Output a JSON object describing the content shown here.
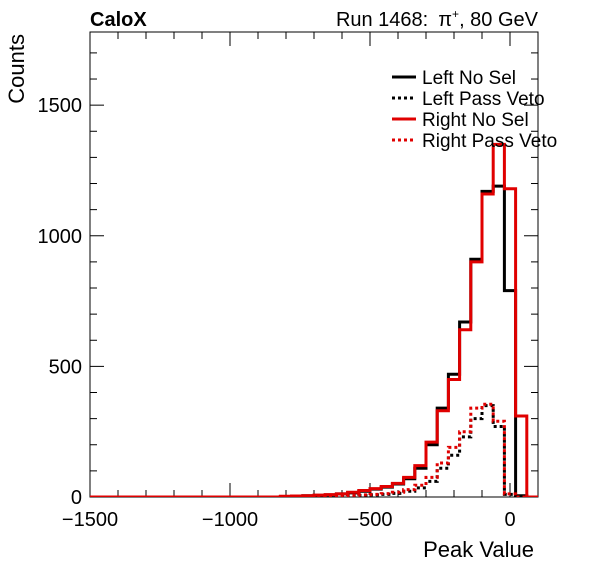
{
  "header": {
    "left_label": "CaloX",
    "run_label": "Run 1468:",
    "particle": "π",
    "particle_sup": "+",
    "energy_label": ", 80 GeV"
  },
  "chart_data": {
    "type": "step-histogram",
    "xlabel": "Peak Value",
    "ylabel": "Counts",
    "xlim": [
      -1500,
      100
    ],
    "ylim": [
      0,
      1780
    ],
    "x_ticks": [
      -1500,
      -1000,
      -500,
      0
    ],
    "x_tick_labels": [
      "−1500",
      "−1000",
      "−500",
      "0"
    ],
    "y_ticks": [
      0,
      500,
      1000,
      1500
    ],
    "y_tick_labels": [
      "0",
      "500",
      "1000",
      "1500"
    ],
    "legend_position": "top-right",
    "bin_edges": [
      -1500,
      -1460,
      -1420,
      -1380,
      -1340,
      -1300,
      -1260,
      -1220,
      -1180,
      -1140,
      -1100,
      -1060,
      -1020,
      -980,
      -940,
      -900,
      -860,
      -820,
      -780,
      -740,
      -700,
      -660,
      -620,
      -580,
      -540,
      -500,
      -460,
      -420,
      -380,
      -340,
      -300,
      -260,
      -220,
      -180,
      -140,
      -100,
      -60,
      -20,
      20,
      60,
      100
    ],
    "series": [
      {
        "name": "Left No Sel",
        "color": "#000000",
        "style": "solid",
        "values": [
          0,
          0,
          0,
          0,
          0,
          0,
          0,
          0,
          0,
          0,
          0,
          0,
          0,
          0,
          0,
          0,
          0,
          2,
          3,
          5,
          6,
          8,
          12,
          16,
          22,
          30,
          38,
          50,
          70,
          110,
          200,
          340,
          470,
          670,
          910,
          1170,
          1190,
          790,
          5,
          0
        ]
      },
      {
        "name": "Left Pass Veto",
        "color": "#000000",
        "style": "dotted",
        "values": [
          0,
          0,
          0,
          0,
          0,
          0,
          0,
          0,
          0,
          0,
          0,
          0,
          0,
          0,
          0,
          0,
          0,
          0,
          1,
          1,
          2,
          3,
          4,
          5,
          6,
          8,
          10,
          14,
          22,
          35,
          60,
          110,
          160,
          230,
          300,
          350,
          270,
          10,
          0,
          0
        ]
      },
      {
        "name": "Right No Sel",
        "color": "#e00000",
        "style": "solid",
        "values": [
          0,
          0,
          0,
          0,
          0,
          0,
          0,
          0,
          0,
          0,
          0,
          0,
          0,
          0,
          0,
          0,
          0,
          3,
          4,
          5,
          7,
          9,
          12,
          18,
          25,
          32,
          40,
          52,
          75,
          120,
          210,
          330,
          450,
          640,
          900,
          1160,
          1350,
          1180,
          310,
          0
        ]
      },
      {
        "name": "Right Pass Veto",
        "color": "#e00000",
        "style": "dotted",
        "values": [
          0,
          0,
          0,
          0,
          0,
          0,
          0,
          0,
          0,
          0,
          0,
          0,
          0,
          0,
          0,
          0,
          0,
          0,
          1,
          2,
          3,
          4,
          5,
          6,
          8,
          10,
          13,
          18,
          28,
          45,
          75,
          130,
          190,
          250,
          340,
          355,
          290,
          12,
          0,
          0
        ]
      }
    ]
  }
}
